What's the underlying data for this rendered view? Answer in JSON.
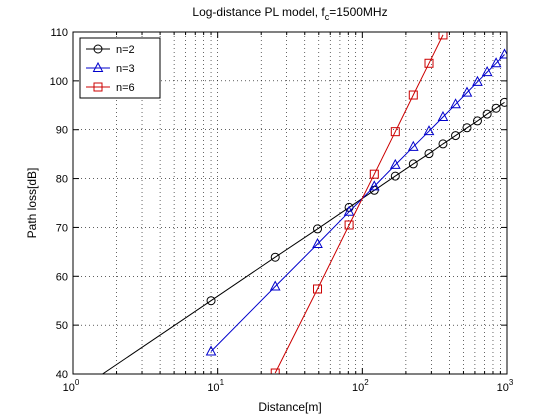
{
  "chart_data": {
    "type": "line",
    "title": "Log-distance PL model, f",
    "title_sub": "c",
    "title_tail": "=1500MHz",
    "xlabel": "Distance[m]",
    "ylabel": "Path loss[dB]",
    "xscale": "log",
    "xlim": [
      1,
      1000
    ],
    "ylim": [
      40,
      110
    ],
    "x_tick_labels": [
      {
        "base": "10",
        "exp": "0"
      },
      {
        "base": "10",
        "exp": "1"
      },
      {
        "base": "10",
        "exp": "2"
      },
      {
        "base": "10",
        "exp": "3"
      }
    ],
    "y_ticks": [
      40,
      50,
      60,
      70,
      80,
      90,
      100,
      110
    ],
    "grid": true,
    "legend_position": "top-left",
    "series": [
      {
        "name": "n=2",
        "color": "#000000",
        "marker": "circle",
        "x": [
          1,
          9,
          25,
          49,
          81,
          121,
          169,
          225,
          289,
          361,
          441,
          529,
          625,
          729,
          841,
          961
        ],
        "y": [
          35.9,
          55.0,
          63.9,
          69.7,
          74.1,
          77.6,
          80.5,
          83.0,
          85.1,
          87.1,
          88.8,
          90.4,
          91.8,
          93.2,
          94.4,
          95.6
        ]
      },
      {
        "name": "n=3",
        "color": "#0000cc",
        "marker": "triangle",
        "x": [
          9,
          25,
          49,
          81,
          121,
          169,
          225,
          289,
          361,
          441,
          529,
          625,
          729,
          841,
          961
        ],
        "y": [
          44.6,
          57.9,
          66.6,
          73.2,
          78.4,
          82.8,
          86.5,
          89.7,
          92.6,
          95.2,
          97.6,
          99.8,
          101.8,
          103.6,
          105.4
        ]
      },
      {
        "name": "n=6",
        "color": "#cc0000",
        "marker": "square",
        "x": [
          25,
          49,
          81,
          121,
          169,
          225,
          289,
          361
        ],
        "y": [
          40.2,
          57.4,
          70.5,
          80.9,
          89.6,
          97.1,
          103.6,
          109.4
        ]
      }
    ]
  }
}
